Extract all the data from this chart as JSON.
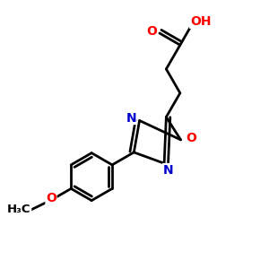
{
  "bg_color": "#ffffff",
  "bond_color": "#000000",
  "N_color": "#0000cc",
  "O_color": "#ff0000",
  "bond_width": 2.0,
  "figsize": [
    3.0,
    3.0
  ],
  "dpi": 100,
  "xlim": [
    0,
    10
  ],
  "ylim": [
    0,
    10
  ]
}
